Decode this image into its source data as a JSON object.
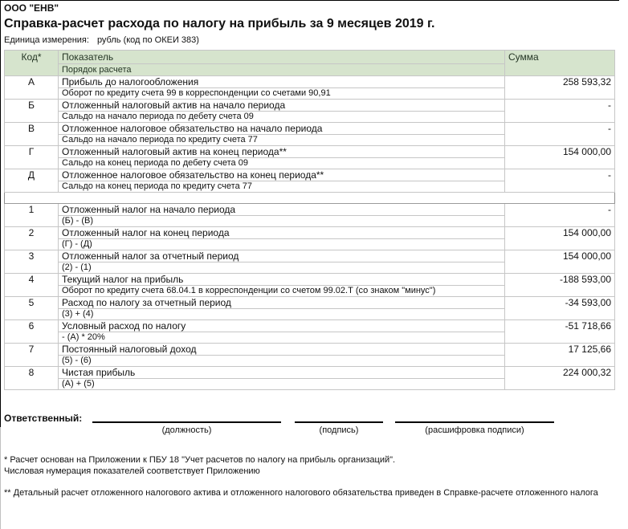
{
  "header": {
    "company": "ООО \"ЕНВ\"",
    "title": "Справка-расчет расхода по налогу на прибыль за 9 месяцев 2019 г.",
    "unit_label": "Единица измерения:",
    "unit_value": "рубль (код по ОКЕИ 383)"
  },
  "table": {
    "columns": {
      "code": "Код*",
      "indicator": "Показатель",
      "indicator_sub": "Порядок расчета",
      "sum": "Сумма"
    },
    "rows": [
      {
        "code": "А",
        "indicator": "Прибыль до налогообложения",
        "calc": "Оборот по кредиту счета 99 в корреспонденции со счетами 90,91",
        "sum": "258 593,32"
      },
      {
        "code": "Б",
        "indicator": "Отложенный налоговый актив на начало периода",
        "calc": "Сальдо на начало периода по дебету счета 09",
        "sum": "-"
      },
      {
        "code": "В",
        "indicator": "Отложенное налоговое обязательство на начало периода",
        "calc": "Сальдо на начало периода по кредиту счета 77",
        "sum": "-"
      },
      {
        "code": "Г",
        "indicator": "Отложенный налоговый актив на конец периода**",
        "calc": "Сальдо на конец периода по дебету счета 09",
        "sum": "154 000,00"
      },
      {
        "code": "Д",
        "indicator": "Отложенное налоговое обязательство на конец периода**",
        "calc": "Сальдо на конец периода по кредиту счета 77",
        "sum": "-"
      },
      {
        "separator": true
      },
      {
        "code": "1",
        "indicator": "Отложенный налог на начало периода",
        "calc": "(Б) - (В)",
        "sum": "-"
      },
      {
        "code": "2",
        "indicator": "Отложенный налог на конец периода",
        "calc": "(Г) - (Д)",
        "sum": "154 000,00"
      },
      {
        "code": "3",
        "indicator": "Отложенный налог за отчетный период",
        "calc": "(2) - (1)",
        "sum": "154 000,00"
      },
      {
        "code": "4",
        "indicator": "Текущий налог на прибыль",
        "calc": "Оборот по кредиту счета 68.04.1  в корреспонденции со счетом 99.02.Т (со знаком \"минус\")",
        "sum": "-188 593,00"
      },
      {
        "code": "5",
        "indicator": "Расход по налогу за отчетный период",
        "calc": "(3) + (4)",
        "sum": "-34 593,00"
      },
      {
        "code": "6",
        "indicator": "Условный расход по налогу",
        "calc": "- (А) * 20%",
        "sum": "-51 718,66"
      },
      {
        "code": "7",
        "indicator": "Постоянный налоговый доход",
        "calc": "(5) - (6)",
        "sum": "17 125,66"
      },
      {
        "code": "8",
        "indicator": "Чистая прибыль",
        "calc": "(А) + (5)",
        "sum": "224 000,32"
      }
    ]
  },
  "signature": {
    "label": "Ответственный:",
    "captions": [
      "(должность)",
      "(подпись)",
      "(расшифровка подписи)"
    ]
  },
  "footnotes": {
    "note1_line1": "* Расчет основан на Приложении к ПБУ 18 \"Учет расчетов по налогу на прибыль организаций\".",
    "note1_line2": "Числовая нумерация показателей соответствует Приложению",
    "note2": "** Детальный расчет отложенного налогового актива и отложенного налогового обязательства приведен в Справке-расчете отложенного налога"
  },
  "colors": {
    "header_bg": "#d6e4cd",
    "header_text": "#253625",
    "grid_line": "#c6c6c6",
    "grid_line_dark": "#9b9b9b",
    "table_outline": "#8e8e8e",
    "page_border": "#000000"
  }
}
